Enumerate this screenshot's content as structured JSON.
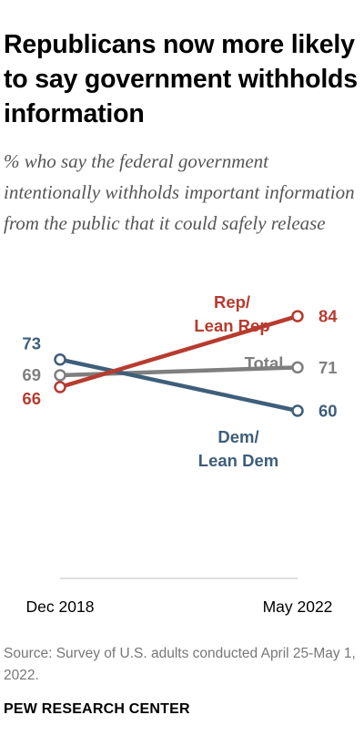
{
  "title": "Republicans now more likely to say government withholds information",
  "subtitle": "% who say the federal government intentionally withholds important information from the public that it could safely release",
  "source": "Source: Survey of U.S. adults conducted April 25-May 1, 2022.",
  "brand": "PEW RESEARCH CENTER",
  "chart_data": {
    "type": "line",
    "categories": [
      "Dec 2018",
      "May 2022"
    ],
    "series": [
      {
        "name": "Total",
        "values": [
          69,
          71
        ],
        "color": "#7f7f7f"
      },
      {
        "name": "Dem/ Lean Dem",
        "values": [
          73,
          60
        ],
        "color": "#3e5e7a"
      },
      {
        "name": "Rep/ Lean Rep",
        "values": [
          66,
          84
        ],
        "color": "#b73b2f"
      }
    ],
    "ylim": [
      0,
      100
    ],
    "xlabel": "",
    "ylabel": "",
    "grid": false
  }
}
